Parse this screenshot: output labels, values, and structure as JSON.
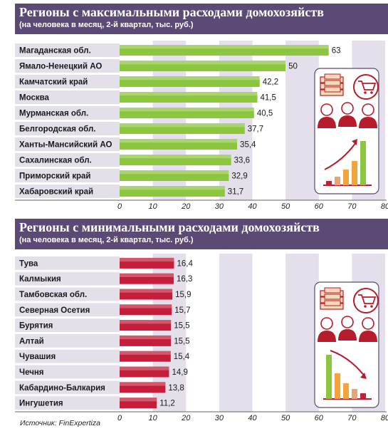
{
  "colors": {
    "banner": "#5a4a75",
    "bar_green": "#8cc63f",
    "bar_red": "#c41e3a",
    "band": "#e4dfea",
    "row_bg": "#e4e0ea",
    "icon_red": "#b71c2c",
    "frame": "#5a4a75"
  },
  "chart_data": [
    {
      "type": "bar",
      "orientation": "horizontal",
      "title": "Регионы с максимальными расходами домохозяйств",
      "subtitle": "(на человека в месяц, 2-й квартал, тыс. руб.)",
      "categories": [
        "Магаданская обл.",
        "Ямало-Ненецкий АО",
        "Камчатский край",
        "Москва",
        "Мурманская обл.",
        "Белгородская обл.",
        "Ханты-Мансийский АО",
        "Сахалинская обл.",
        "Приморский край",
        "Хабаровский край"
      ],
      "values": [
        63,
        50,
        42.2,
        41.5,
        40.5,
        37.7,
        35.4,
        33.6,
        32.9,
        31.7
      ],
      "labels": [
        "63",
        "50",
        "42,2",
        "41,5",
        "40,5",
        "37,7",
        "35,4",
        "33,6",
        "32,9",
        "31,7"
      ],
      "xlim": [
        0,
        80
      ],
      "ticks": [
        "0",
        "10",
        "20",
        "30",
        "40",
        "50",
        "60",
        "70",
        "80"
      ],
      "bar_color": "#8cc63f",
      "icon_trend": "up"
    },
    {
      "type": "bar",
      "orientation": "horizontal",
      "title": "Регионы с минимальными расходами домохозяйств",
      "subtitle": "(на человека в месяц, 2-й квартал, тыс. руб.)",
      "categories": [
        "Тува",
        "Калмыкия",
        "Тамбовская обл.",
        "Северная Осетия",
        "Бурятия",
        "Алтай",
        "Чувашия",
        "Чечня",
        "Кабардино-Балкария",
        "Ингушетия"
      ],
      "values": [
        16.4,
        16.3,
        15.9,
        15.7,
        15.5,
        15.5,
        15.4,
        14.9,
        13.8,
        11.2
      ],
      "labels": [
        "16,4",
        "16,3",
        "15,9",
        "15,7",
        "15,5",
        "15,5",
        "15,4",
        "14,9",
        "13,8",
        "11,2"
      ],
      "xlim": [
        0,
        80
      ],
      "ticks": [
        "0",
        "10",
        "20",
        "30",
        "40",
        "50",
        "60",
        "70",
        "80"
      ],
      "bar_color": "#c41e3a",
      "icon_trend": "down"
    }
  ],
  "source": "Источник: FinExpertiza",
  "icons": [
    "money-stack-icon",
    "shopping-cart-icon",
    "people-icon",
    "growth-chart-icon",
    "decline-chart-icon"
  ]
}
